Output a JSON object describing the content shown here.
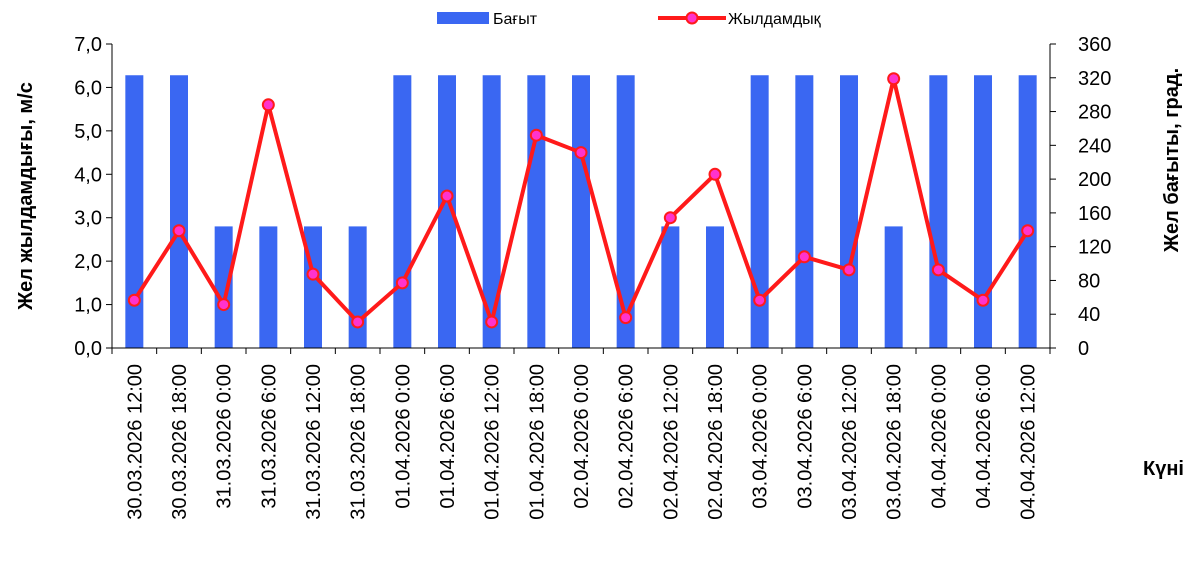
{
  "chart_data": {
    "type": "bar+line",
    "categories": [
      "30.03.2026 12:00",
      "30.03.2026 18:00",
      "31.03.2026 0:00",
      "31.03.2026 6:00",
      "31.03.2026 12:00",
      "31.03.2026 18:00",
      "01.04.2026 0:00",
      "01.04.2026 6:00",
      "01.04.2026 12:00",
      "01.04.2026 18:00",
      "02.04.2026 0:00",
      "02.04.2026 6:00",
      "02.04.2026 12:00",
      "02.04.2026 18:00",
      "03.04.2026 0:00",
      "03.04.2026 6:00",
      "03.04.2026 12:00",
      "03.04.2026 18:00",
      "04.04.2026 0:00",
      "04.04.2026 6:00",
      "04.04.2026 12:00"
    ],
    "series": [
      {
        "name": "Бағыт",
        "type": "bar",
        "axis": "right",
        "color": "#3A67F2",
        "values": [
          323,
          323,
          144,
          144,
          144,
          144,
          323,
          323,
          323,
          323,
          323,
          323,
          144,
          144,
          323,
          323,
          323,
          144,
          323,
          323,
          323
        ]
      },
      {
        "name": "Жылдамдық",
        "type": "line",
        "axis": "left",
        "color": "#FF1A1A",
        "marker_color": "#FF33CC",
        "values": [
          1.1,
          2.7,
          1.0,
          5.6,
          1.7,
          0.6,
          1.5,
          3.5,
          0.6,
          4.9,
          4.5,
          0.7,
          3.0,
          4.0,
          1.1,
          2.1,
          1.8,
          6.2,
          1.8,
          1.1,
          2.7
        ]
      }
    ],
    "ylabel": "Жел жылдамдығы, м/с",
    "y2label": "Жел бағыты, град.",
    "xlabel": "Күні",
    "ylim": [
      0,
      7
    ],
    "y2lim": [
      0,
      360
    ],
    "y_ticks": [
      "0,0",
      "1,0",
      "2,0",
      "3,0",
      "4,0",
      "5,0",
      "6,0",
      "7,0"
    ],
    "y2_ticks": [
      "0",
      "40",
      "80",
      "120",
      "160",
      "200",
      "240",
      "280",
      "320",
      "360"
    ],
    "grid": false,
    "legend_position": "top"
  }
}
